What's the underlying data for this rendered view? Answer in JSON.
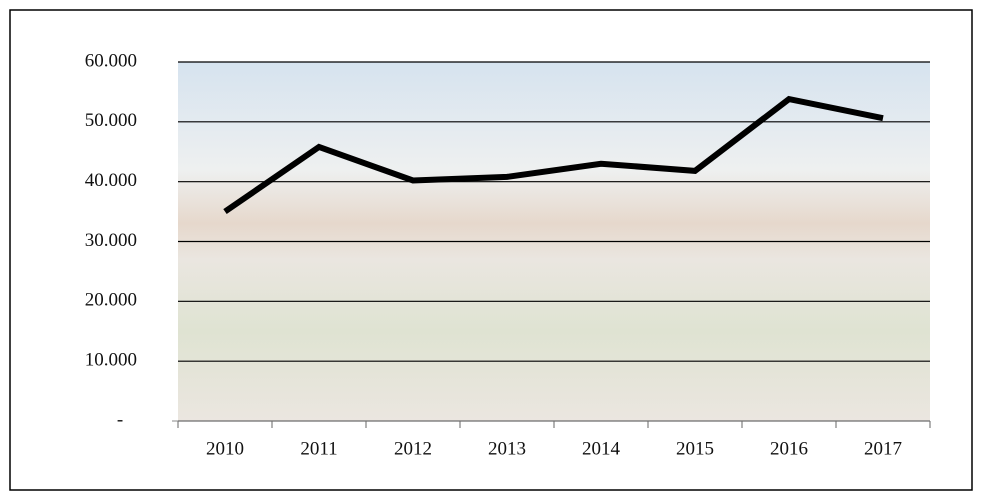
{
  "chart_data": {
    "type": "line",
    "categories": [
      "2010",
      "2011",
      "2012",
      "2013",
      "2014",
      "2015",
      "2016",
      "2017"
    ],
    "values": [
      35000,
      45800,
      40200,
      40800,
      43000,
      41800,
      53800,
      50600
    ],
    "color": "#000000",
    "ylim": [
      0,
      60000
    ],
    "yticks": [
      {
        "value": 0,
        "label": "-"
      },
      {
        "value": 10000,
        "label": "10.000"
      },
      {
        "value": 20000,
        "label": "20.000"
      },
      {
        "value": 30000,
        "label": "30.000"
      },
      {
        "value": 40000,
        "label": "40.000"
      },
      {
        "value": 50000,
        "label": "50.000"
      },
      {
        "value": 60000,
        "label": "60.000"
      }
    ],
    "grid": true
  }
}
